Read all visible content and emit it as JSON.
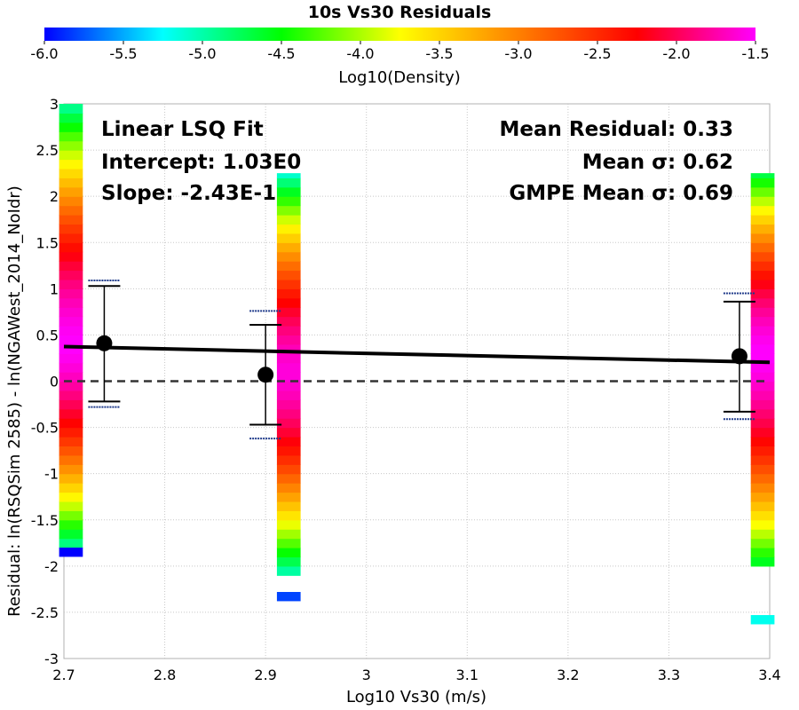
{
  "chart_data": {
    "type": "scatter",
    "title": "10s Vs30 Residuals",
    "xlabel": "Log10 Vs30 (m/s)",
    "ylabel": "Residual: ln(RSQSim 2585) - ln(NGAWest_2014_NoIdr)",
    "xlim": [
      2.7,
      3.4
    ],
    "ylim": [
      -3,
      3
    ],
    "x_ticks": [
      "2.7",
      "2.8",
      "2.9",
      "3",
      "3.1",
      "3.2",
      "3.3",
      "3.4"
    ],
    "y_ticks": [
      "-3",
      "-2.5",
      "-2",
      "-1.5",
      "-1",
      "-0.5",
      "0",
      "0.5",
      "1",
      "1.5",
      "2",
      "2.5",
      "3"
    ],
    "grid": true,
    "colorbar": {
      "label": "Log10(Density)",
      "range": [
        -6.0,
        -1.5
      ],
      "ticks": [
        "-6.0",
        "-5.5",
        "-5.0",
        "-4.5",
        "-4.0",
        "-3.5",
        "-3.0",
        "-2.5",
        "-2.0",
        "-1.5"
      ],
      "colors": [
        "#0000ff",
        "#00ffff",
        "#00ff00",
        "#ffff00",
        "#ff8000",
        "#ff0000",
        "#ff00ff"
      ]
    },
    "annotations": {
      "left": [
        "Linear LSQ Fit",
        "Intercept: 1.03E0",
        "Slope: -2.43E-1"
      ],
      "right": [
        "Mean Residual: 0.33",
        "Mean σ: 0.62",
        "GMPE Mean σ: 0.69"
      ]
    },
    "fit_line": {
      "intercept": 1.03,
      "slope": -0.243
    },
    "bin_means": [
      {
        "x": 2.74,
        "y": 0.41,
        "lower": -0.22,
        "upper": 1.03,
        "gmpe_lower": -0.28,
        "gmpe_upper": 1.09
      },
      {
        "x": 2.9,
        "y": 0.07,
        "lower": -0.47,
        "upper": 0.61,
        "gmpe_lower": -0.62,
        "gmpe_upper": 0.76
      },
      {
        "x": 3.37,
        "y": 0.27,
        "lower": -0.33,
        "upper": 0.86,
        "gmpe_lower": -0.41,
        "gmpe_upper": 0.95
      }
    ],
    "density_columns": [
      {
        "x": 2.707,
        "y_min": -1.8,
        "y_max": 3.0,
        "peak_y": 0.4,
        "peak": -1.5,
        "edge": -5.0,
        "outliers": [
          {
            "y": -1.85,
            "density": -6.0
          }
        ]
      },
      {
        "x": 2.923,
        "y_min": -2.1,
        "y_max": 2.25,
        "peak_y": 0.1,
        "peak": -1.6,
        "edge": -5.1,
        "outliers": [
          {
            "y": -2.33,
            "density": -5.8
          }
        ]
      },
      {
        "x": 3.393,
        "y_min": -2.0,
        "y_max": 2.25,
        "peak_y": 0.3,
        "peak": -1.5,
        "edge": -4.7,
        "outliers": [
          {
            "y": -2.58,
            "density": -5.2
          }
        ]
      }
    ]
  }
}
